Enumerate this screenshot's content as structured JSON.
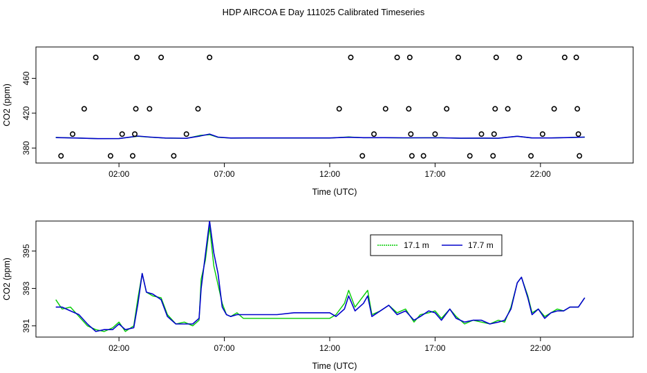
{
  "title": "HDP AIRCOA E  Day 111025  Calibrated Timeseries",
  "chart_data": [
    {
      "type": "scatter",
      "xlabel": "Time (UTC)",
      "ylabel": "CO2 (ppm)",
      "x_unit": "hours UTC",
      "xlim": [
        -1.94,
        26.4
      ],
      "ylim": [
        362.8,
        496
      ],
      "x_ticks": [
        {
          "x": 2,
          "label": "02:00"
        },
        {
          "x": 7,
          "label": "07:00"
        },
        {
          "x": 12,
          "label": "12:00"
        },
        {
          "x": 17,
          "label": "17:00"
        },
        {
          "x": 22,
          "label": "22:00"
        }
      ],
      "y_ticks": [
        {
          "y": 380,
          "label": "380"
        },
        {
          "y": 420,
          "label": "420"
        },
        {
          "y": 460,
          "label": "460"
        }
      ],
      "series": [
        {
          "role": "calibration-points",
          "color": "#000000",
          "marker": "open-circle",
          "points": [
            [
              -0.75,
              371
            ],
            [
              -0.2,
              396
            ],
            [
              0.35,
              425
            ],
            [
              0.9,
              484
            ],
            [
              1.6,
              371
            ],
            [
              2.15,
              396
            ],
            [
              2.65,
              371
            ],
            [
              2.75,
              396
            ],
            [
              2.8,
              425
            ],
            [
              2.85,
              484
            ],
            [
              3.45,
              425
            ],
            [
              4.0,
              484
            ],
            [
              4.6,
              371
            ],
            [
              5.2,
              396
            ],
            [
              5.75,
              425
            ],
            [
              6.3,
              484
            ],
            [
              12.45,
              425
            ],
            [
              13.0,
              484
            ],
            [
              13.55,
              371
            ],
            [
              14.1,
              396
            ],
            [
              14.65,
              425
            ],
            [
              15.2,
              484
            ],
            [
              15.75,
              425
            ],
            [
              15.8,
              484
            ],
            [
              15.85,
              396
            ],
            [
              15.9,
              371
            ],
            [
              17.0,
              396
            ],
            [
              16.45,
              371
            ],
            [
              17.55,
              425
            ],
            [
              18.1,
              484
            ],
            [
              18.65,
              371
            ],
            [
              19.2,
              396
            ],
            [
              19.75,
              371
            ],
            [
              19.8,
              396
            ],
            [
              19.85,
              425
            ],
            [
              19.9,
              484
            ],
            [
              20.45,
              425
            ],
            [
              21.0,
              484
            ],
            [
              21.55,
              371
            ],
            [
              22.1,
              396
            ],
            [
              22.65,
              425
            ],
            [
              23.15,
              484
            ],
            [
              23.7,
              484
            ],
            [
              23.75,
              425
            ],
            [
              23.8,
              396
            ],
            [
              23.85,
              371
            ]
          ]
        },
        {
          "name": "17.1 m",
          "color": "#00cc00",
          "points": [
            [
              -1.0,
              392.2
            ],
            [
              0.0,
              391.5
            ],
            [
              1.0,
              390.8
            ],
            [
              2.0,
              390.9
            ],
            [
              2.9,
              393.5
            ],
            [
              3.5,
              392.4
            ],
            [
              4.2,
              391.4
            ],
            [
              5.2,
              391.1
            ],
            [
              5.85,
              394.5
            ],
            [
              6.3,
              395.3
            ],
            [
              6.7,
              392.3
            ],
            [
              7.3,
              391.4
            ],
            [
              8.0,
              391.4
            ],
            [
              12.0,
              391.4
            ],
            [
              12.9,
              392.8
            ],
            [
              13.6,
              391.8
            ],
            [
              14.6,
              391.9
            ],
            [
              15.5,
              391.6
            ],
            [
              16.5,
              391.8
            ],
            [
              17.3,
              391.8
            ],
            [
              18.2,
              391.2
            ],
            [
              19.3,
              391.3
            ],
            [
              20.0,
              391.2
            ],
            [
              20.9,
              393.6
            ],
            [
              21.6,
              391.5
            ],
            [
              22.5,
              391.6
            ],
            [
              23.3,
              392.0
            ],
            [
              24.1,
              392.5
            ]
          ]
        },
        {
          "name": "17.7 m",
          "color": "#0000cc",
          "points": [
            [
              -1.0,
              392.0
            ],
            [
              0.0,
              391.5
            ],
            [
              1.0,
              390.8
            ],
            [
              2.0,
              390.9
            ],
            [
              2.9,
              393.7
            ],
            [
              3.5,
              392.5
            ],
            [
              4.2,
              391.5
            ],
            [
              5.2,
              391.2
            ],
            [
              5.85,
              393.8
            ],
            [
              6.3,
              396.0
            ],
            [
              6.7,
              392.5
            ],
            [
              7.3,
              391.5
            ],
            [
              8.0,
              391.6
            ],
            [
              12.0,
              391.6
            ],
            [
              12.9,
              392.4
            ],
            [
              13.6,
              391.9
            ],
            [
              14.6,
              391.9
            ],
            [
              15.5,
              391.7
            ],
            [
              16.5,
              391.7
            ],
            [
              17.3,
              391.7
            ],
            [
              18.2,
              391.3
            ],
            [
              19.3,
              391.4
            ],
            [
              20.0,
              391.3
            ],
            [
              20.9,
              393.5
            ],
            [
              21.6,
              391.6
            ],
            [
              22.5,
              391.6
            ],
            [
              23.3,
              392.0
            ],
            [
              24.1,
              392.5
            ]
          ]
        }
      ]
    },
    {
      "type": "line",
      "xlabel": "Time (UTC)",
      "ylabel": "CO2 (ppm)",
      "x_unit": "hours UTC",
      "xlim": [
        -1.94,
        26.4
      ],
      "ylim": [
        390.4,
        396.6
      ],
      "x_ticks": [
        {
          "x": 2,
          "label": "02:00"
        },
        {
          "x": 7,
          "label": "07:00"
        },
        {
          "x": 12,
          "label": "12:00"
        },
        {
          "x": 17,
          "label": "17:00"
        },
        {
          "x": 22,
          "label": "22:00"
        }
      ],
      "y_ticks": [
        {
          "y": 391,
          "label": "391"
        },
        {
          "y": 393,
          "label": "393"
        },
        {
          "y": 395,
          "label": "395"
        }
      ],
      "legend": "top-right",
      "series": [
        {
          "name": "17.1 m",
          "color": "#00cc00",
          "points": [
            [
              -1.0,
              392.4
            ],
            [
              -0.7,
              391.9
            ],
            [
              -0.3,
              392.0
            ],
            [
              0.1,
              391.5
            ],
            [
              0.5,
              391.0
            ],
            [
              0.9,
              390.8
            ],
            [
              1.3,
              390.7
            ],
            [
              1.7,
              390.9
            ],
            [
              2.0,
              391.2
            ],
            [
              2.3,
              390.7
            ],
            [
              2.7,
              391.0
            ],
            [
              2.9,
              392.5
            ],
            [
              3.1,
              393.8
            ],
            [
              3.3,
              392.8
            ],
            [
              3.6,
              392.6
            ],
            [
              4.0,
              392.5
            ],
            [
              4.3,
              391.6
            ],
            [
              4.7,
              391.1
            ],
            [
              5.1,
              391.2
            ],
            [
              5.5,
              391.0
            ],
            [
              5.8,
              391.3
            ],
            [
              5.9,
              393.5
            ],
            [
              6.1,
              394.5
            ],
            [
              6.3,
              396.3
            ],
            [
              6.5,
              394.2
            ],
            [
              6.7,
              393.2
            ],
            [
              6.9,
              392.2
            ],
            [
              7.1,
              391.6
            ],
            [
              7.3,
              391.5
            ],
            [
              7.6,
              391.7
            ],
            [
              7.9,
              391.4
            ],
            [
              12.0,
              391.4
            ],
            [
              12.3,
              391.6
            ],
            [
              12.7,
              392.2
            ],
            [
              12.9,
              392.9
            ],
            [
              13.2,
              392.0
            ],
            [
              13.6,
              392.6
            ],
            [
              13.8,
              392.9
            ],
            [
              14.0,
              391.6
            ],
            [
              14.4,
              391.8
            ],
            [
              14.8,
              392.1
            ],
            [
              15.2,
              391.7
            ],
            [
              15.6,
              391.9
            ],
            [
              16.0,
              391.2
            ],
            [
              16.3,
              391.6
            ],
            [
              16.7,
              391.7
            ],
            [
              17.0,
              391.8
            ],
            [
              17.3,
              391.4
            ],
            [
              17.7,
              391.9
            ],
            [
              18.0,
              391.5
            ],
            [
              18.4,
              391.1
            ],
            [
              18.8,
              391.3
            ],
            [
              19.2,
              391.2
            ],
            [
              19.6,
              391.1
            ],
            [
              20.0,
              391.3
            ],
            [
              20.3,
              391.2
            ],
            [
              20.6,
              392.0
            ],
            [
              20.9,
              393.3
            ],
            [
              21.1,
              393.6
            ],
            [
              21.4,
              392.6
            ],
            [
              21.6,
              391.7
            ],
            [
              21.9,
              391.9
            ],
            [
              22.2,
              391.5
            ],
            [
              22.5,
              391.7
            ],
            [
              22.8,
              391.9
            ],
            [
              23.1,
              391.8
            ],
            [
              23.4,
              392.0
            ],
            [
              23.8,
              392.0
            ],
            [
              24.1,
              392.5
            ]
          ]
        },
        {
          "name": "17.7 m",
          "color": "#0000cc",
          "points": [
            [
              -1.0,
              392.0
            ],
            [
              -0.7,
              392.0
            ],
            [
              -0.3,
              391.8
            ],
            [
              0.1,
              391.6
            ],
            [
              0.5,
              391.1
            ],
            [
              0.9,
              390.7
            ],
            [
              1.3,
              390.8
            ],
            [
              1.7,
              390.8
            ],
            [
              2.0,
              391.1
            ],
            [
              2.3,
              390.8
            ],
            [
              2.7,
              390.9
            ],
            [
              2.9,
              392.2
            ],
            [
              3.1,
              393.8
            ],
            [
              3.3,
              392.8
            ],
            [
              3.6,
              392.7
            ],
            [
              4.0,
              392.4
            ],
            [
              4.3,
              391.5
            ],
            [
              4.7,
              391.1
            ],
            [
              5.1,
              391.1
            ],
            [
              5.5,
              391.1
            ],
            [
              5.8,
              391.4
            ],
            [
              5.9,
              393.0
            ],
            [
              6.1,
              394.8
            ],
            [
              6.3,
              396.6
            ],
            [
              6.5,
              394.9
            ],
            [
              6.7,
              393.8
            ],
            [
              6.9,
              392.0
            ],
            [
              7.1,
              391.6
            ],
            [
              7.3,
              391.5
            ],
            [
              7.6,
              391.6
            ],
            [
              7.9,
              391.6
            ],
            [
              9.5,
              391.6
            ],
            [
              10.3,
              391.7
            ],
            [
              12.0,
              391.7
            ],
            [
              12.3,
              391.5
            ],
            [
              12.7,
              391.9
            ],
            [
              12.9,
              392.6
            ],
            [
              13.2,
              391.8
            ],
            [
              13.6,
              392.2
            ],
            [
              13.8,
              392.6
            ],
            [
              14.0,
              391.5
            ],
            [
              14.4,
              391.8
            ],
            [
              14.8,
              392.1
            ],
            [
              15.2,
              391.6
            ],
            [
              15.6,
              391.8
            ],
            [
              16.0,
              391.3
            ],
            [
              16.3,
              391.5
            ],
            [
              16.7,
              391.8
            ],
            [
              17.0,
              391.7
            ],
            [
              17.3,
              391.3
            ],
            [
              17.7,
              391.9
            ],
            [
              18.0,
              391.4
            ],
            [
              18.4,
              391.2
            ],
            [
              18.8,
              391.3
            ],
            [
              19.2,
              391.3
            ],
            [
              19.6,
              391.1
            ],
            [
              20.0,
              391.2
            ],
            [
              20.3,
              391.3
            ],
            [
              20.6,
              391.9
            ],
            [
              20.9,
              393.3
            ],
            [
              21.1,
              393.6
            ],
            [
              21.4,
              392.5
            ],
            [
              21.6,
              391.6
            ],
            [
              21.9,
              391.9
            ],
            [
              22.2,
              391.4
            ],
            [
              22.5,
              391.7
            ],
            [
              22.8,
              391.8
            ],
            [
              23.1,
              391.8
            ],
            [
              23.4,
              392.0
            ],
            [
              23.8,
              392.0
            ],
            [
              24.1,
              392.5
            ]
          ]
        }
      ]
    }
  ]
}
